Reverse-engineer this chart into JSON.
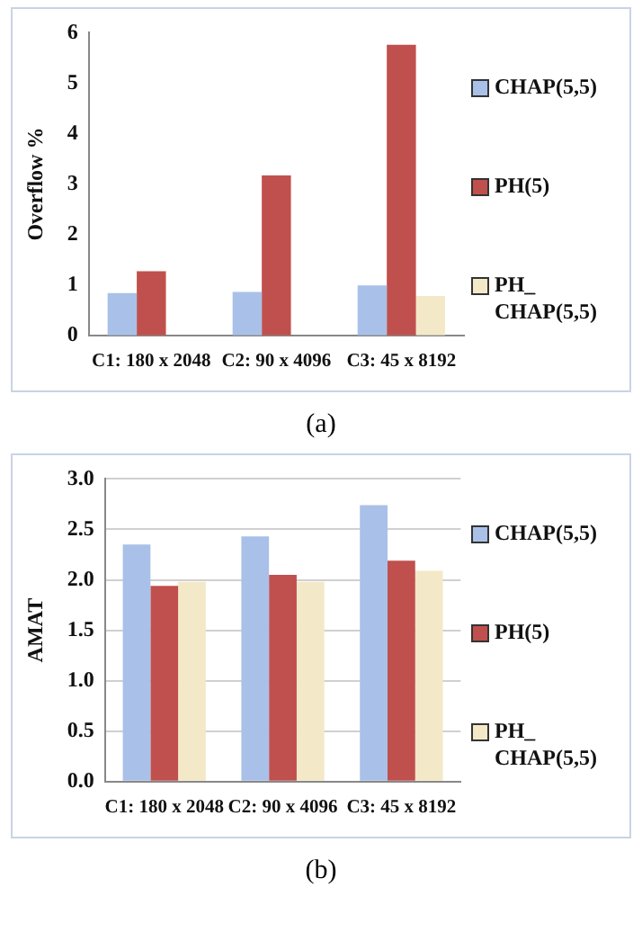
{
  "chart_data": [
    {
      "type": "bar",
      "ylabel": "Overflow %",
      "categories": [
        "C1: 180 x 2048",
        "C2: 90 x 4096",
        "C3: 45 x 8192"
      ],
      "series": [
        {
          "name": "CHAP(5,5)",
          "color": "#a9c1e8",
          "values": [
            0.84,
            0.86,
            0.99
          ]
        },
        {
          "name": "PH(5)",
          "color": "#c0504d",
          "values": [
            1.27,
            3.17,
            5.76
          ]
        },
        {
          "name": "PH_CHAP(5,5)",
          "color": "#f3e9c8",
          "values": [
            0,
            0,
            0.78
          ]
        }
      ],
      "ylim": [
        0,
        6
      ],
      "yticks": [
        0,
        1,
        2,
        3,
        4,
        5,
        6
      ],
      "grid": false,
      "legend": "right",
      "annotations": [
        "(a)"
      ]
    },
    {
      "type": "bar",
      "ylabel": "AMAT",
      "categories": [
        "C1: 180 x 2048",
        "C2: 90 x 4096",
        "C3: 45 x 8192"
      ],
      "series": [
        {
          "name": "CHAP(5,5)",
          "color": "#a9c1e8",
          "values": [
            2.35,
            2.43,
            2.74
          ]
        },
        {
          "name": "PH(5)",
          "color": "#c0504d",
          "values": [
            1.94,
            2.05,
            2.19
          ]
        },
        {
          "name": "PH_CHAP(5,5)",
          "color": "#f3e9c8",
          "values": [
            1.98,
            1.98,
            2.09
          ]
        }
      ],
      "ylim": [
        0,
        3
      ],
      "yticks": [
        {
          "value": 0,
          "label": "0.0"
        },
        {
          "value": 0.5,
          "label": "0.5"
        },
        {
          "value": 1,
          "label": "1.0"
        },
        {
          "value": 1.5,
          "label": "1.5"
        },
        {
          "value": 2,
          "label": "2.0"
        },
        {
          "value": 2.5,
          "label": "2.5"
        },
        {
          "value": 3,
          "label": "3.0"
        }
      ],
      "grid": "y",
      "legend": "right",
      "annotations": [
        "(b)"
      ]
    }
  ]
}
